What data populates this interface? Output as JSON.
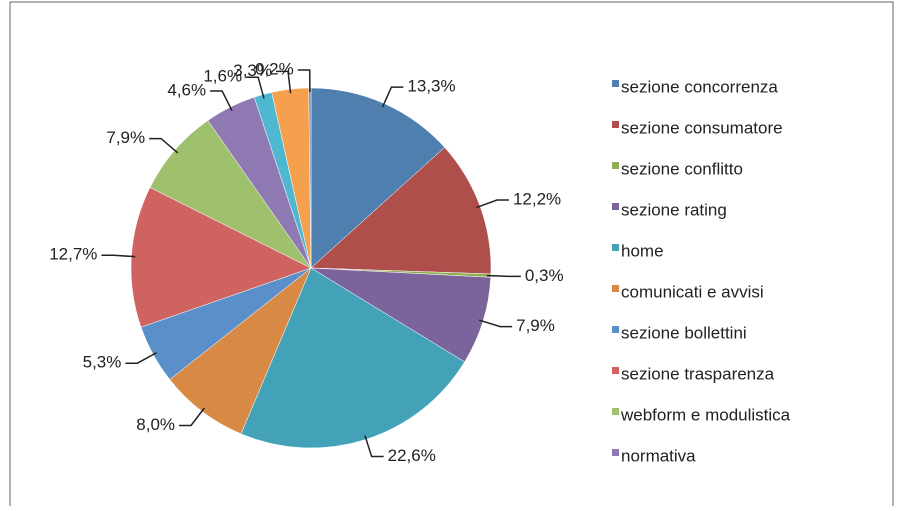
{
  "chart_data": {
    "type": "pie",
    "categories": [
      "sezione concorrenza",
      "sezione consumatore",
      "sezione conflitto",
      "sezione rating",
      "home",
      "comunicati e avvisi",
      "sezione bollettini",
      "sezione trasparenza",
      "webform e modulistica",
      "normativa",
      null,
      null,
      null
    ],
    "values": [
      13.3,
      12.2,
      0.3,
      7.9,
      22.6,
      8.0,
      5.3,
      12.7,
      7.9,
      4.6,
      1.6,
      3.3,
      0.2
    ],
    "value_labels": [
      "13,3%",
      "12,2%",
      "0,3%",
      "7,9%",
      "22,6%",
      "8,0%",
      "5,3%",
      "12,7%",
      "7,9%",
      "4,6%",
      "1,6%",
      "3,3%",
      "0,2%"
    ],
    "colors": [
      "#4e7fae",
      "#ae4f4c",
      "#8fae52",
      "#7b649c",
      "#43a2b8",
      "#d88a45",
      "#5b8fc9",
      "#cf6360",
      "#9fc06d",
      "#8f79b3",
      "#4fb8d0",
      "#f5a04e",
      "#6a8fc0"
    ],
    "legend": "right"
  }
}
